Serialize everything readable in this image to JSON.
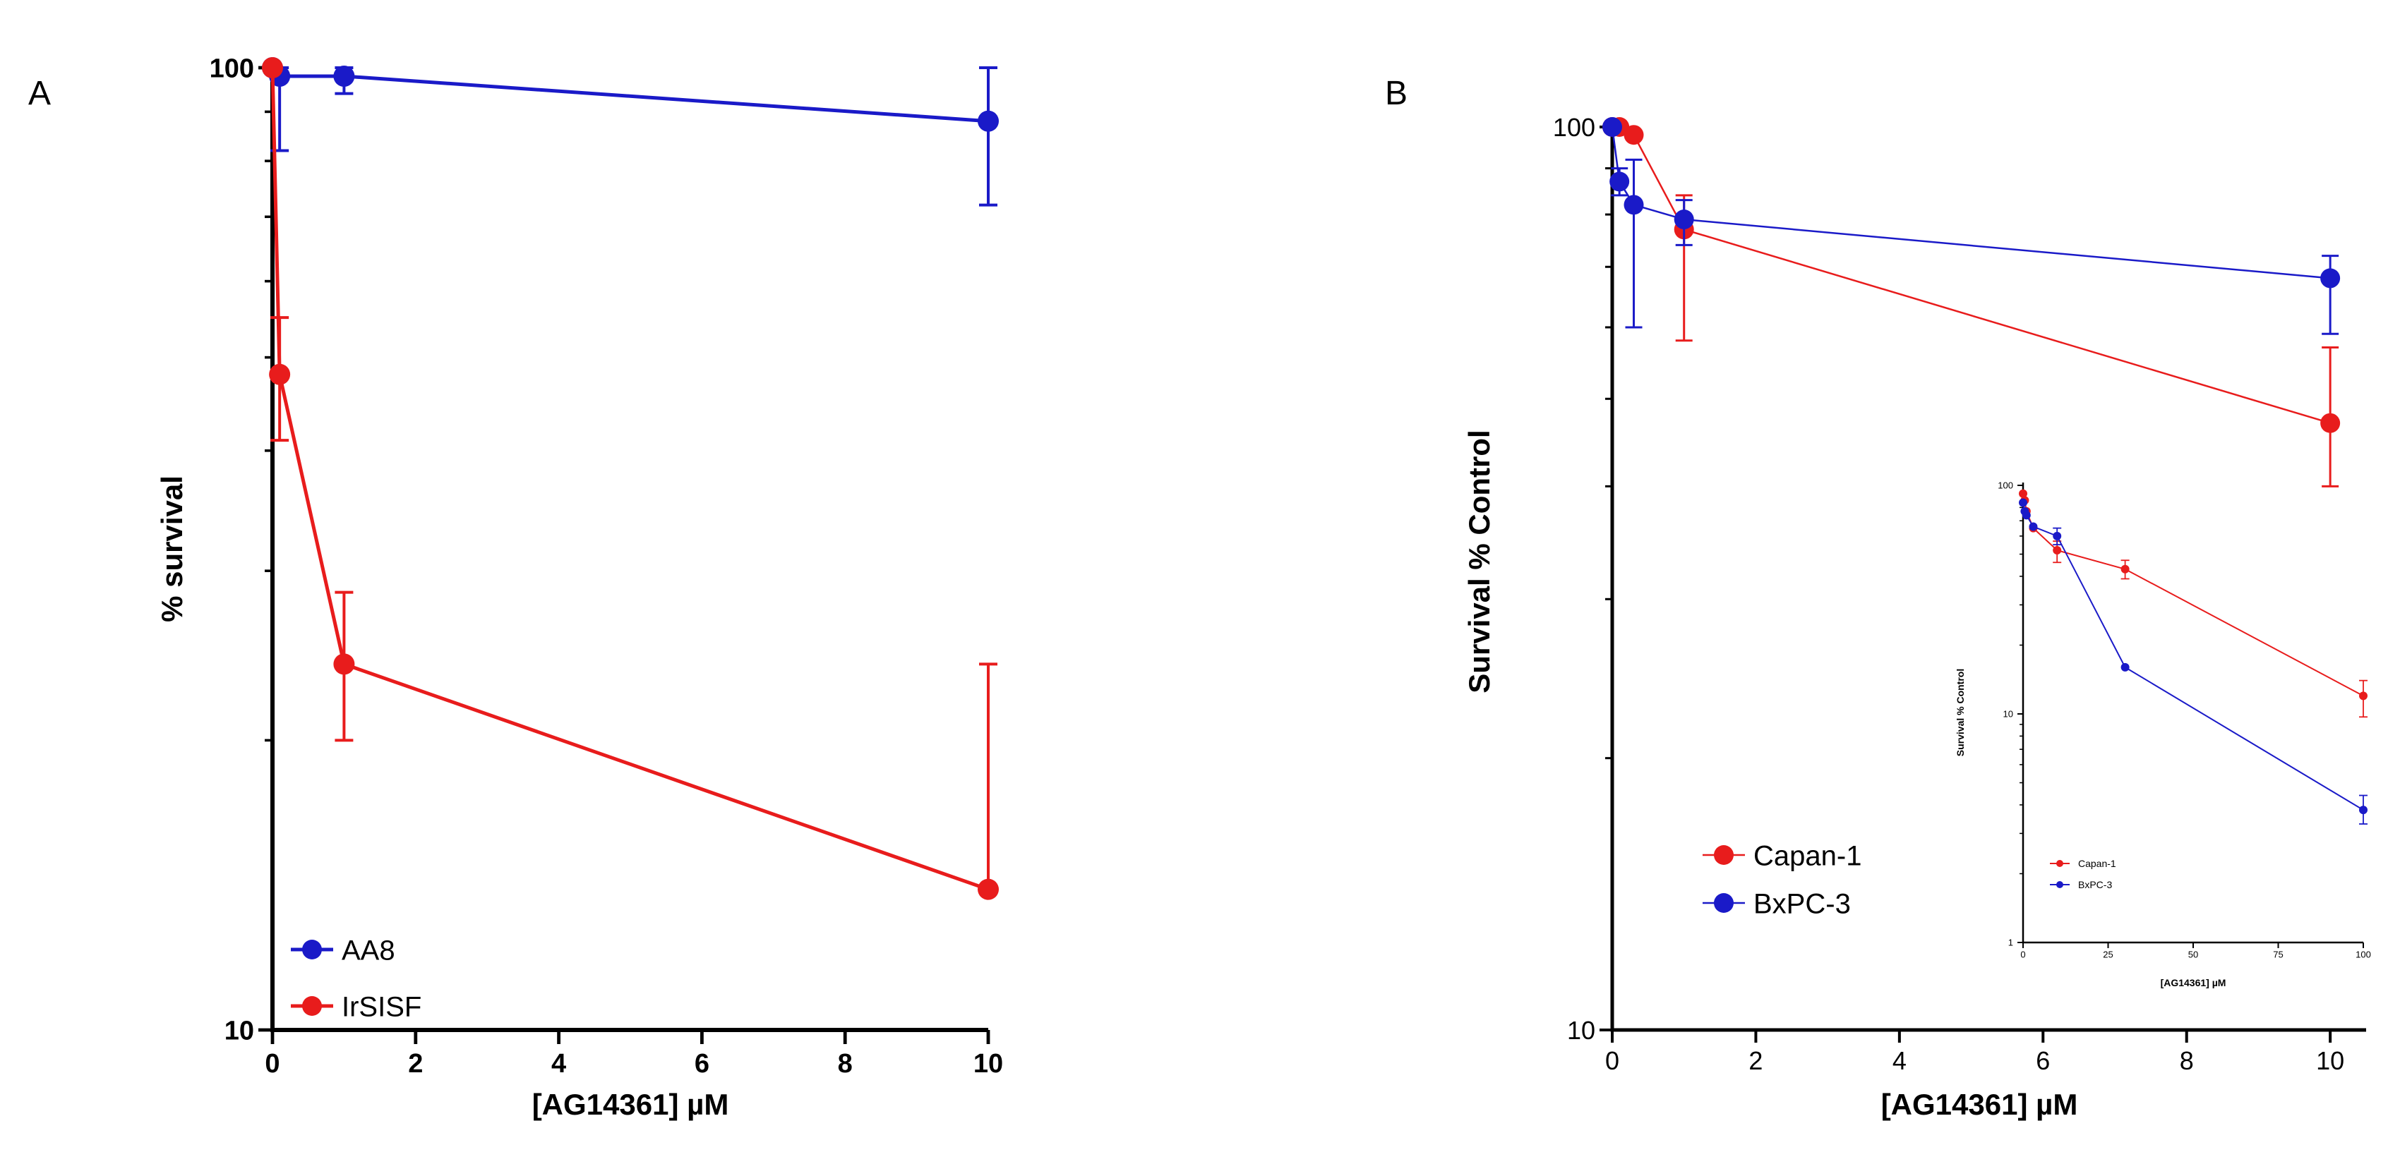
{
  "chart_data": [
    {
      "id": "A",
      "panel_label": "A",
      "type": "line",
      "yscale": "log",
      "xlabel": "[AG14361] µM",
      "ylabel": "% survival",
      "xlim": [
        0,
        10
      ],
      "ylim": [
        10,
        100
      ],
      "xticks": [
        0,
        2,
        4,
        6,
        8,
        10
      ],
      "xtick_labels": [
        "0",
        "2",
        "4",
        "6",
        "8",
        "10"
      ],
      "ytick_labels": [
        {
          "value": 100,
          "label": "100"
        },
        {
          "value": 10,
          "label": "10"
        }
      ],
      "legend_position": "bottom-left",
      "series": [
        {
          "name": "AA8",
          "color": "#1a1ac8",
          "x": [
            0,
            0.1,
            1,
            10
          ],
          "y": [
            100,
            98,
            98,
            88
          ],
          "err_lo": [
            null,
            82,
            94,
            72
          ],
          "err_hi": [
            null,
            100,
            100,
            100
          ]
        },
        {
          "name": "IrSISF",
          "color": "#e81c1c",
          "x": [
            0,
            0.1,
            1,
            10
          ],
          "y": [
            100,
            48,
            24,
            14
          ],
          "err_lo": [
            null,
            41,
            20,
            null
          ],
          "err_hi": [
            null,
            55,
            28.5,
            24
          ]
        }
      ]
    },
    {
      "id": "B",
      "panel_label": "B",
      "type": "line",
      "yscale": "log",
      "xlabel": "[AG14361] µM",
      "ylabel": "Survival % Control",
      "xlim": [
        0,
        10.5
      ],
      "ylim": [
        10,
        100
      ],
      "xticks": [
        0,
        2,
        4,
        6,
        8,
        10
      ],
      "xtick_labels": [
        "0",
        "2",
        "4",
        "6",
        "8",
        "10"
      ],
      "ytick_labels": [
        {
          "value": 100,
          "label": "100"
        },
        {
          "value": 10,
          "label": "10"
        }
      ],
      "legend_position": "bottom-left",
      "series": [
        {
          "name": "Capan-1",
          "color": "#e81c1c",
          "x": [
            0,
            0.1,
            0.3,
            1,
            10
          ],
          "y": [
            100,
            100,
            98,
            77,
            47
          ],
          "err_lo": [
            null,
            null,
            null,
            58,
            40
          ],
          "err_hi": [
            null,
            null,
            null,
            84,
            57
          ]
        },
        {
          "name": "BxPC-3",
          "color": "#1a1ac8",
          "x": [
            0,
            0.1,
            0.3,
            1,
            10
          ],
          "y": [
            100,
            87,
            82,
            79,
            68
          ],
          "err_lo": [
            null,
            84,
            60,
            74,
            59
          ],
          "err_hi": [
            null,
            90,
            92,
            83,
            72
          ]
        }
      ]
    },
    {
      "id": "B-inset",
      "type": "line",
      "yscale": "log",
      "xlabel": "[AG14361] µM",
      "ylabel": "Survival % Control",
      "xlim": [
        0,
        100
      ],
      "ylim": [
        1,
        100
      ],
      "xticks": [
        0,
        25,
        50,
        75,
        100
      ],
      "xtick_labels": [
        "0",
        "25",
        "50",
        "75",
        "100"
      ],
      "ytick_labels": [
        {
          "value": 100,
          "label": "100"
        },
        {
          "value": 10,
          "label": "10"
        },
        {
          "value": 1,
          "label": "1"
        }
      ],
      "legend_position": "bottom-left",
      "series": [
        {
          "name": "Capan-1",
          "color": "#e81c1c",
          "x": [
            0,
            0.5,
            1,
            3,
            10,
            30,
            100
          ],
          "y": [
            92,
            86,
            77,
            65,
            52,
            43,
            12
          ],
          "err_lo": [
            null,
            null,
            null,
            null,
            46,
            39,
            9.7
          ],
          "err_hi": [
            null,
            null,
            null,
            null,
            57,
            47,
            14
          ]
        },
        {
          "name": "BxPC-3",
          "color": "#1a1ac8",
          "x": [
            0,
            0.5,
            1,
            3,
            10,
            30,
            100
          ],
          "y": [
            84,
            77,
            74,
            66,
            60,
            16,
            3.8
          ],
          "err_lo": [
            null,
            null,
            null,
            null,
            55,
            null,
            3.3
          ],
          "err_hi": [
            null,
            null,
            null,
            null,
            65,
            null,
            4.4
          ]
        }
      ]
    }
  ]
}
